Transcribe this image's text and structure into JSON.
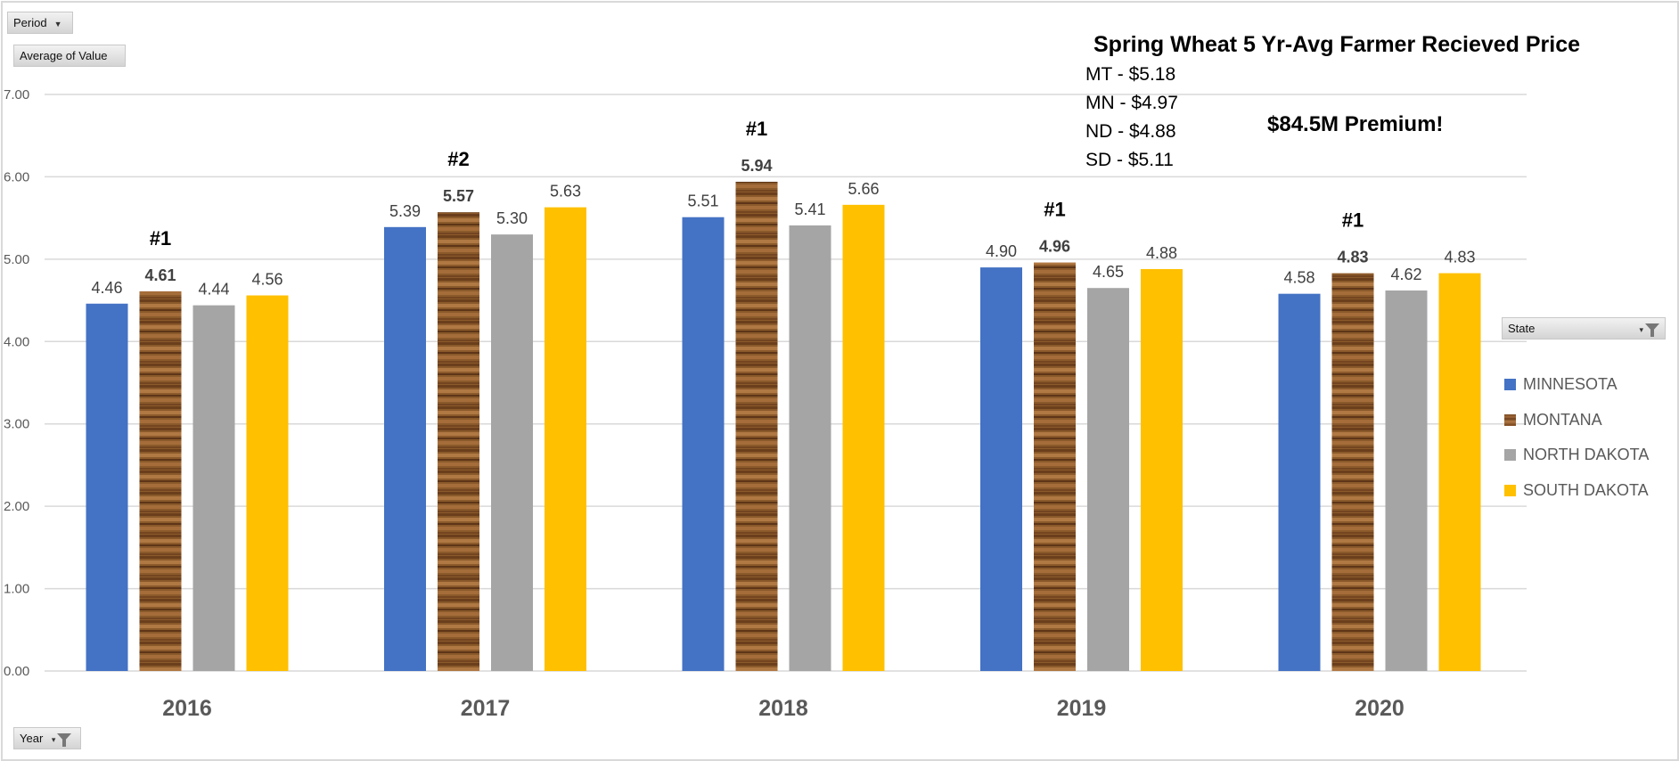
{
  "filters": {
    "period_label": "Period",
    "value_label": "Average of Value",
    "year_label": "Year",
    "state_label": "State"
  },
  "annotations": {
    "title": "Spring Wheat 5 Yr-Avg Farmer Recieved Price",
    "averages": [
      "MT - $5.18",
      "MN - $4.97",
      "ND - $4.88",
      "SD - $5.11"
    ],
    "premium": "$84.5M Premium!"
  },
  "chart_data": {
    "type": "bar",
    "categories": [
      "2016",
      "2017",
      "2018",
      "2019",
      "2020"
    ],
    "ylim": [
      0,
      7
    ],
    "yticks": [
      "0.00",
      "1.00",
      "2.00",
      "3.00",
      "4.00",
      "5.00",
      "6.00",
      "7.00"
    ],
    "grid": true,
    "legend_position": "right",
    "series": [
      {
        "name": "MINNESOTA",
        "color": "#4472C4",
        "values": [
          4.46,
          5.39,
          5.51,
          4.9,
          4.58
        ]
      },
      {
        "name": "MONTANA",
        "color": "#8B5A2B",
        "pattern": "wood",
        "values": [
          4.61,
          5.57,
          5.94,
          4.96,
          4.83
        ]
      },
      {
        "name": "NORTH DAKOTA",
        "color": "#A5A5A5",
        "values": [
          4.44,
          5.3,
          5.41,
          4.65,
          4.62
        ]
      },
      {
        "name": "SOUTH DAKOTA",
        "color": "#FFC000",
        "values": [
          4.56,
          5.63,
          5.66,
          4.88,
          4.83
        ]
      }
    ],
    "rank_labels": [
      "#1",
      "#2",
      "#1",
      "#1",
      "#1"
    ]
  }
}
